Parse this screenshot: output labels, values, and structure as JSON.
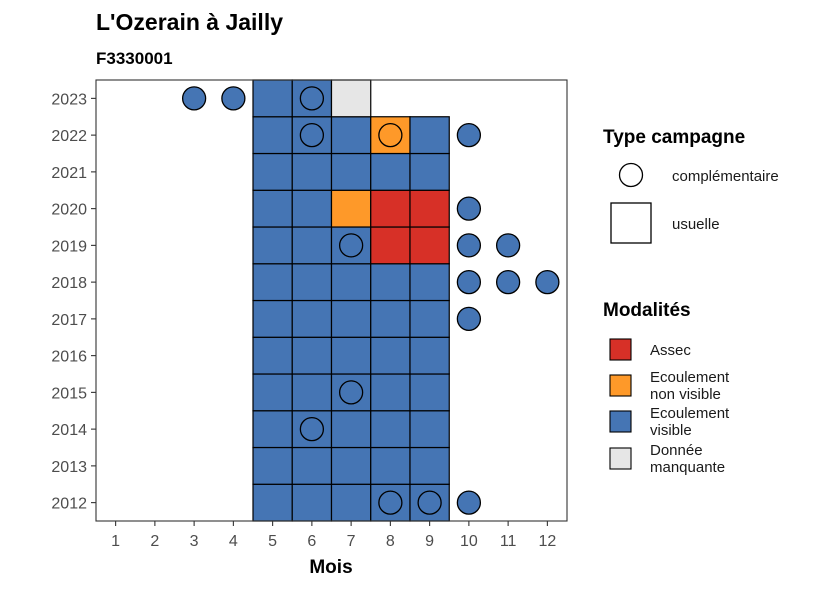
{
  "chart_data": {
    "type": "heatmap",
    "title": "L'Ozerain à Jailly",
    "subtitle": "F3330001",
    "xlabel": "Mois",
    "ylabel": "",
    "x_ticks": [
      "1",
      "2",
      "3",
      "4",
      "5",
      "6",
      "7",
      "8",
      "9",
      "10",
      "11",
      "12"
    ],
    "y_ticks": [
      "2012",
      "2013",
      "2014",
      "2015",
      "2016",
      "2017",
      "2018",
      "2019",
      "2020",
      "2021",
      "2022",
      "2023"
    ],
    "xlim": [
      0.5,
      12.5
    ],
    "ylim": [
      2011.5,
      2023.5
    ],
    "grid": false,
    "legend_placement": "right",
    "colors": {
      "Assec": "#d73027",
      "Ecoulement non visible": "#fe9929",
      "Ecoulement visible": "#4575b4",
      "Donnée manquante": "#e6e6e6"
    },
    "cells": [
      {
        "year": 2012,
        "month": 5,
        "modalite": "Ecoulement visible",
        "type": "usuelle"
      },
      {
        "year": 2012,
        "month": 6,
        "modalite": "Ecoulement visible",
        "type": "usuelle"
      },
      {
        "year": 2012,
        "month": 7,
        "modalite": "Ecoulement visible",
        "type": "usuelle"
      },
      {
        "year": 2012,
        "month": 8,
        "modalite": "Ecoulement visible",
        "type": "usuelle"
      },
      {
        "year": 2012,
        "month": 9,
        "modalite": "Ecoulement visible",
        "type": "usuelle"
      },
      {
        "year": 2013,
        "month": 5,
        "modalite": "Ecoulement visible",
        "type": "usuelle"
      },
      {
        "year": 2013,
        "month": 6,
        "modalite": "Ecoulement visible",
        "type": "usuelle"
      },
      {
        "year": 2013,
        "month": 7,
        "modalite": "Ecoulement visible",
        "type": "usuelle"
      },
      {
        "year": 2013,
        "month": 8,
        "modalite": "Ecoulement visible",
        "type": "usuelle"
      },
      {
        "year": 2013,
        "month": 9,
        "modalite": "Ecoulement visible",
        "type": "usuelle"
      },
      {
        "year": 2014,
        "month": 5,
        "modalite": "Ecoulement visible",
        "type": "usuelle"
      },
      {
        "year": 2014,
        "month": 6,
        "modalite": "Ecoulement visible",
        "type": "usuelle"
      },
      {
        "year": 2014,
        "month": 7,
        "modalite": "Ecoulement visible",
        "type": "usuelle"
      },
      {
        "year": 2014,
        "month": 8,
        "modalite": "Ecoulement visible",
        "type": "usuelle"
      },
      {
        "year": 2014,
        "month": 9,
        "modalite": "Ecoulement visible",
        "type": "usuelle"
      },
      {
        "year": 2015,
        "month": 5,
        "modalite": "Ecoulement visible",
        "type": "usuelle"
      },
      {
        "year": 2015,
        "month": 6,
        "modalite": "Ecoulement visible",
        "type": "usuelle"
      },
      {
        "year": 2015,
        "month": 7,
        "modalite": "Ecoulement visible",
        "type": "usuelle"
      },
      {
        "year": 2015,
        "month": 8,
        "modalite": "Ecoulement visible",
        "type": "usuelle"
      },
      {
        "year": 2015,
        "month": 9,
        "modalite": "Ecoulement visible",
        "type": "usuelle"
      },
      {
        "year": 2016,
        "month": 5,
        "modalite": "Ecoulement visible",
        "type": "usuelle"
      },
      {
        "year": 2016,
        "month": 6,
        "modalite": "Ecoulement visible",
        "type": "usuelle"
      },
      {
        "year": 2016,
        "month": 7,
        "modalite": "Ecoulement visible",
        "type": "usuelle"
      },
      {
        "year": 2016,
        "month": 8,
        "modalite": "Ecoulement visible",
        "type": "usuelle"
      },
      {
        "year": 2016,
        "month": 9,
        "modalite": "Ecoulement visible",
        "type": "usuelle"
      },
      {
        "year": 2017,
        "month": 5,
        "modalite": "Ecoulement visible",
        "type": "usuelle"
      },
      {
        "year": 2017,
        "month": 6,
        "modalite": "Ecoulement visible",
        "type": "usuelle"
      },
      {
        "year": 2017,
        "month": 7,
        "modalite": "Ecoulement visible",
        "type": "usuelle"
      },
      {
        "year": 2017,
        "month": 8,
        "modalite": "Ecoulement visible",
        "type": "usuelle"
      },
      {
        "year": 2017,
        "month": 9,
        "modalite": "Ecoulement visible",
        "type": "usuelle"
      },
      {
        "year": 2018,
        "month": 5,
        "modalite": "Ecoulement visible",
        "type": "usuelle"
      },
      {
        "year": 2018,
        "month": 6,
        "modalite": "Ecoulement visible",
        "type": "usuelle"
      },
      {
        "year": 2018,
        "month": 7,
        "modalite": "Ecoulement visible",
        "type": "usuelle"
      },
      {
        "year": 2018,
        "month": 8,
        "modalite": "Ecoulement visible",
        "type": "usuelle"
      },
      {
        "year": 2018,
        "month": 9,
        "modalite": "Ecoulement visible",
        "type": "usuelle"
      },
      {
        "year": 2019,
        "month": 5,
        "modalite": "Ecoulement visible",
        "type": "usuelle"
      },
      {
        "year": 2019,
        "month": 6,
        "modalite": "Ecoulement visible",
        "type": "usuelle"
      },
      {
        "year": 2019,
        "month": 7,
        "modalite": "Ecoulement visible",
        "type": "usuelle"
      },
      {
        "year": 2019,
        "month": 8,
        "modalite": "Assec",
        "type": "usuelle"
      },
      {
        "year": 2019,
        "month": 9,
        "modalite": "Assec",
        "type": "usuelle"
      },
      {
        "year": 2020,
        "month": 5,
        "modalite": "Ecoulement visible",
        "type": "usuelle"
      },
      {
        "year": 2020,
        "month": 6,
        "modalite": "Ecoulement visible",
        "type": "usuelle"
      },
      {
        "year": 2020,
        "month": 7,
        "modalite": "Ecoulement non visible",
        "type": "usuelle"
      },
      {
        "year": 2020,
        "month": 8,
        "modalite": "Assec",
        "type": "usuelle"
      },
      {
        "year": 2020,
        "month": 9,
        "modalite": "Assec",
        "type": "usuelle"
      },
      {
        "year": 2021,
        "month": 5,
        "modalite": "Ecoulement visible",
        "type": "usuelle"
      },
      {
        "year": 2021,
        "month": 6,
        "modalite": "Ecoulement visible",
        "type": "usuelle"
      },
      {
        "year": 2021,
        "month": 7,
        "modalite": "Ecoulement visible",
        "type": "usuelle"
      },
      {
        "year": 2021,
        "month": 8,
        "modalite": "Ecoulement visible",
        "type": "usuelle"
      },
      {
        "year": 2021,
        "month": 9,
        "modalite": "Ecoulement visible",
        "type": "usuelle"
      },
      {
        "year": 2022,
        "month": 5,
        "modalite": "Ecoulement visible",
        "type": "usuelle"
      },
      {
        "year": 2022,
        "month": 6,
        "modalite": "Ecoulement visible",
        "type": "usuelle"
      },
      {
        "year": 2022,
        "month": 7,
        "modalite": "Ecoulement visible",
        "type": "usuelle"
      },
      {
        "year": 2022,
        "month": 8,
        "modalite": "Ecoulement non visible",
        "type": "usuelle"
      },
      {
        "year": 2022,
        "month": 9,
        "modalite": "Ecoulement visible",
        "type": "usuelle"
      },
      {
        "year": 2023,
        "month": 5,
        "modalite": "Ecoulement visible",
        "type": "usuelle"
      },
      {
        "year": 2023,
        "month": 6,
        "modalite": "Ecoulement visible",
        "type": "usuelle"
      },
      {
        "year": 2023,
        "month": 7,
        "modalite": "Donnée manquante",
        "type": "usuelle"
      }
    ],
    "points": [
      {
        "year": 2012,
        "month": 8,
        "modalite": "Ecoulement visible",
        "type": "complémentaire"
      },
      {
        "year": 2012,
        "month": 9,
        "modalite": "Ecoulement visible",
        "type": "complémentaire"
      },
      {
        "year": 2012,
        "month": 10,
        "modalite": "Ecoulement visible",
        "type": "complémentaire"
      },
      {
        "year": 2014,
        "month": 6,
        "modalite": "Ecoulement visible",
        "type": "complémentaire"
      },
      {
        "year": 2015,
        "month": 7,
        "modalite": "Ecoulement visible",
        "type": "complémentaire"
      },
      {
        "year": 2017,
        "month": 10,
        "modalite": "Ecoulement visible",
        "type": "complémentaire"
      },
      {
        "year": 2018,
        "month": 10,
        "modalite": "Ecoulement visible",
        "type": "complémentaire"
      },
      {
        "year": 2018,
        "month": 11,
        "modalite": "Ecoulement visible",
        "type": "complémentaire"
      },
      {
        "year": 2018,
        "month": 12,
        "modalite": "Ecoulement visible",
        "type": "complémentaire"
      },
      {
        "year": 2019,
        "month": 7,
        "modalite": "Ecoulement visible",
        "type": "complémentaire"
      },
      {
        "year": 2019,
        "month": 10,
        "modalite": "Ecoulement visible",
        "type": "complémentaire"
      },
      {
        "year": 2019,
        "month": 11,
        "modalite": "Ecoulement visible",
        "type": "complémentaire"
      },
      {
        "year": 2020,
        "month": 10,
        "modalite": "Ecoulement visible",
        "type": "complémentaire"
      },
      {
        "year": 2022,
        "month": 6,
        "modalite": "Ecoulement visible",
        "type": "complémentaire"
      },
      {
        "year": 2022,
        "month": 8,
        "modalite": "Ecoulement non visible",
        "type": "complémentaire"
      },
      {
        "year": 2022,
        "month": 10,
        "modalite": "Ecoulement visible",
        "type": "complémentaire"
      },
      {
        "year": 2023,
        "month": 3,
        "modalite": "Ecoulement visible",
        "type": "complémentaire"
      },
      {
        "year": 2023,
        "month": 4,
        "modalite": "Ecoulement visible",
        "type": "complémentaire"
      },
      {
        "year": 2023,
        "month": 6,
        "modalite": "Ecoulement visible",
        "type": "complémentaire"
      }
    ],
    "legend": {
      "type_title": "Type campagne",
      "type_items": [
        {
          "label": "complémentaire",
          "shape": "circle"
        },
        {
          "label": "usuelle",
          "shape": "square"
        }
      ],
      "modalites_title": "Modalités",
      "modalite_items": [
        {
          "key": "Assec",
          "lines": [
            "Assec"
          ]
        },
        {
          "key": "Ecoulement non visible",
          "lines": [
            "Ecoulement",
            "non visible"
          ]
        },
        {
          "key": "Ecoulement visible",
          "lines": [
            "Ecoulement",
            "visible"
          ]
        },
        {
          "key": "Donnée manquante",
          "lines": [
            "Donnée",
            "manquante"
          ]
        }
      ]
    }
  }
}
